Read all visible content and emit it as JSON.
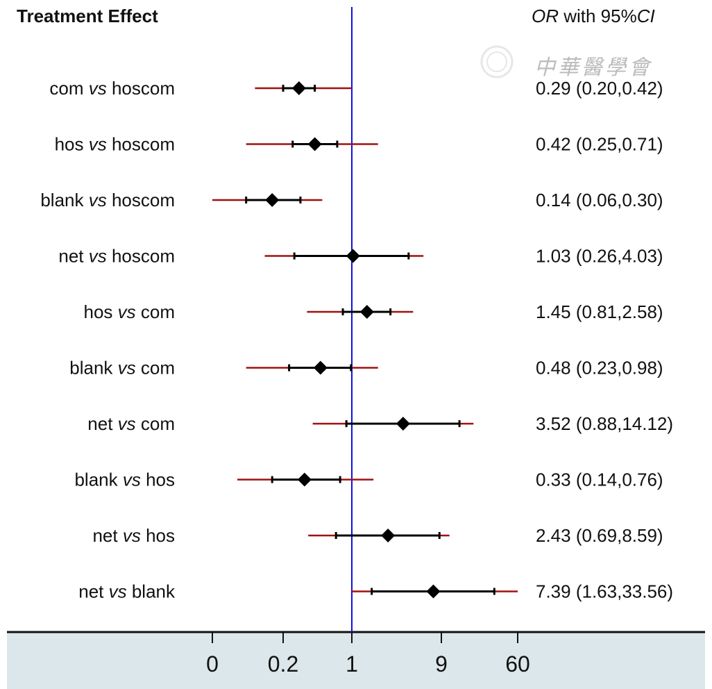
{
  "header": {
    "left_title": "Treatment Effect",
    "right_title_prefix": "OR",
    "right_title_mid": " with 95%",
    "right_title_suffix": "CI"
  },
  "watermark": {
    "text": "中華醫學會"
  },
  "colors": {
    "reference_line": "#1010e0",
    "ci_outer": "#a01010",
    "ci_inner": "#000000",
    "point": "#000000",
    "axis_band": "#dbe7ea"
  },
  "chart_data": {
    "type": "forest",
    "title": "Treatment Effect",
    "value_header": "OR with 95%CI",
    "x_scale": "log",
    "reference_value": 1,
    "x_ticks": [
      {
        "label": "0",
        "value": 0.02
      },
      {
        "label": "0.2",
        "value": 0.2
      },
      {
        "label": "1",
        "value": 1
      },
      {
        "label": "9",
        "value": 9
      },
      {
        "label": "60",
        "value": 60
      }
    ],
    "rows": [
      {
        "a": "com",
        "vs": "vs",
        "b": "hoscom",
        "or": 0.29,
        "lo": 0.2,
        "hi": 0.42,
        "label": "0.29 (0.20,0.42)",
        "pi_lo": 0.08,
        "pi_hi": 1.0
      },
      {
        "a": "hos",
        "vs": "vs",
        "b": "hoscom",
        "or": 0.42,
        "lo": 0.25,
        "hi": 0.71,
        "label": "0.42 (0.25,0.71)",
        "pi_lo": 0.06,
        "pi_hi": 1.9
      },
      {
        "a": "blank",
        "vs": "vs",
        "b": "hoscom",
        "or": 0.14,
        "lo": 0.06,
        "hi": 0.3,
        "label": "0.14 (0.06,0.30)",
        "pi_lo": 0.02,
        "pi_hi": 0.5
      },
      {
        "a": "net",
        "vs": "vs",
        "b": "hoscom",
        "or": 1.03,
        "lo": 0.26,
        "hi": 4.03,
        "label": "1.03 (0.26,4.03)",
        "pi_lo": 0.11,
        "pi_hi": 5.8
      },
      {
        "a": "hos",
        "vs": "vs",
        "b": "com",
        "or": 1.45,
        "lo": 0.81,
        "hi": 2.58,
        "label": "1.45 (0.81,2.58)",
        "pi_lo": 0.35,
        "pi_hi": 4.5
      },
      {
        "a": "blank",
        "vs": "vs",
        "b": "com",
        "or": 0.48,
        "lo": 0.23,
        "hi": 0.98,
        "label": "0.48 (0.23,0.98)",
        "pi_lo": 0.06,
        "pi_hi": 1.9
      },
      {
        "a": "net",
        "vs": "vs",
        "b": "com",
        "or": 3.52,
        "lo": 0.88,
        "hi": 14.12,
        "label": "3.52 (0.88,14.12)",
        "pi_lo": 0.4,
        "pi_hi": 20
      },
      {
        "a": "blank",
        "vs": "vs",
        "b": "hos",
        "or": 0.33,
        "lo": 0.14,
        "hi": 0.76,
        "label": "0.33 (0.14,0.76)",
        "pi_lo": 0.045,
        "pi_hi": 1.7
      },
      {
        "a": "net",
        "vs": "vs",
        "b": "hos",
        "or": 2.43,
        "lo": 0.69,
        "hi": 8.59,
        "label": "2.43 (0.69,8.59)",
        "pi_lo": 0.36,
        "pi_hi": 11
      },
      {
        "a": "net",
        "vs": "vs",
        "b": "blank",
        "or": 7.39,
        "lo": 1.63,
        "hi": 33.56,
        "label": "7.39 (1.63,33.56)",
        "pi_lo": 0.98,
        "pi_hi": 60
      }
    ]
  }
}
